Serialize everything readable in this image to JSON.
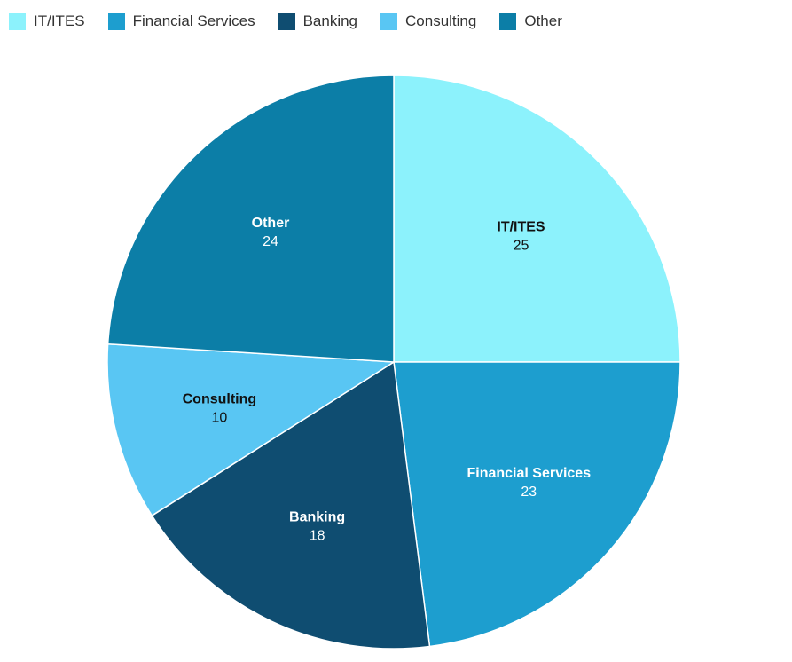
{
  "chart_data": {
    "type": "pie",
    "legend_position": "top-left",
    "start_angle_deg": 0,
    "direction": "clockwise",
    "total": 100,
    "categories": [
      "IT/ITES",
      "Financial Services",
      "Banking",
      "Consulting",
      "Other"
    ],
    "values": [
      25,
      23,
      18,
      10,
      24
    ],
    "slices": [
      {
        "label": "IT/ITES",
        "value": 25,
        "color": "#8CF2FC",
        "text_color": "#111111"
      },
      {
        "label": "Financial Services",
        "value": 23,
        "color": "#1D9ECF",
        "text_color": "#ffffff"
      },
      {
        "label": "Banking",
        "value": 18,
        "color": "#0F4D71",
        "text_color": "#ffffff"
      },
      {
        "label": "Consulting",
        "value": 10,
        "color": "#59C6F3",
        "text_color": "#111111"
      },
      {
        "label": "Other",
        "value": 24,
        "color": "#0C7EA7",
        "text_color": "#ffffff"
      }
    ],
    "legend_text_color": "#333333",
    "slice_border_color": "#ffffff"
  }
}
